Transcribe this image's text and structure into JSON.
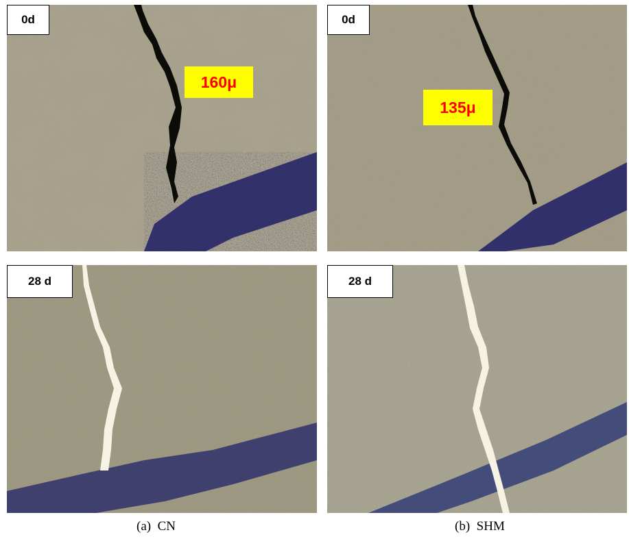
{
  "panels": {
    "cn_0d": {
      "tag": "0d",
      "measurement": "160μ"
    },
    "shm_0d": {
      "tag": "0d",
      "measurement": "135μ"
    },
    "cn_28d": {
      "tag": "28 d"
    },
    "shm_28d": {
      "tag": "28 d"
    }
  },
  "captions": {
    "left": "(a)  CN",
    "right": "(b)  SHM"
  },
  "colors": {
    "concrete": "#a59f8c",
    "crack_dark": "#0b0b08",
    "healed_crack": "#f7f3e4",
    "ink_band": "#2b2a68",
    "label_bg": "#ffff00",
    "label_text": "#ff0000"
  }
}
